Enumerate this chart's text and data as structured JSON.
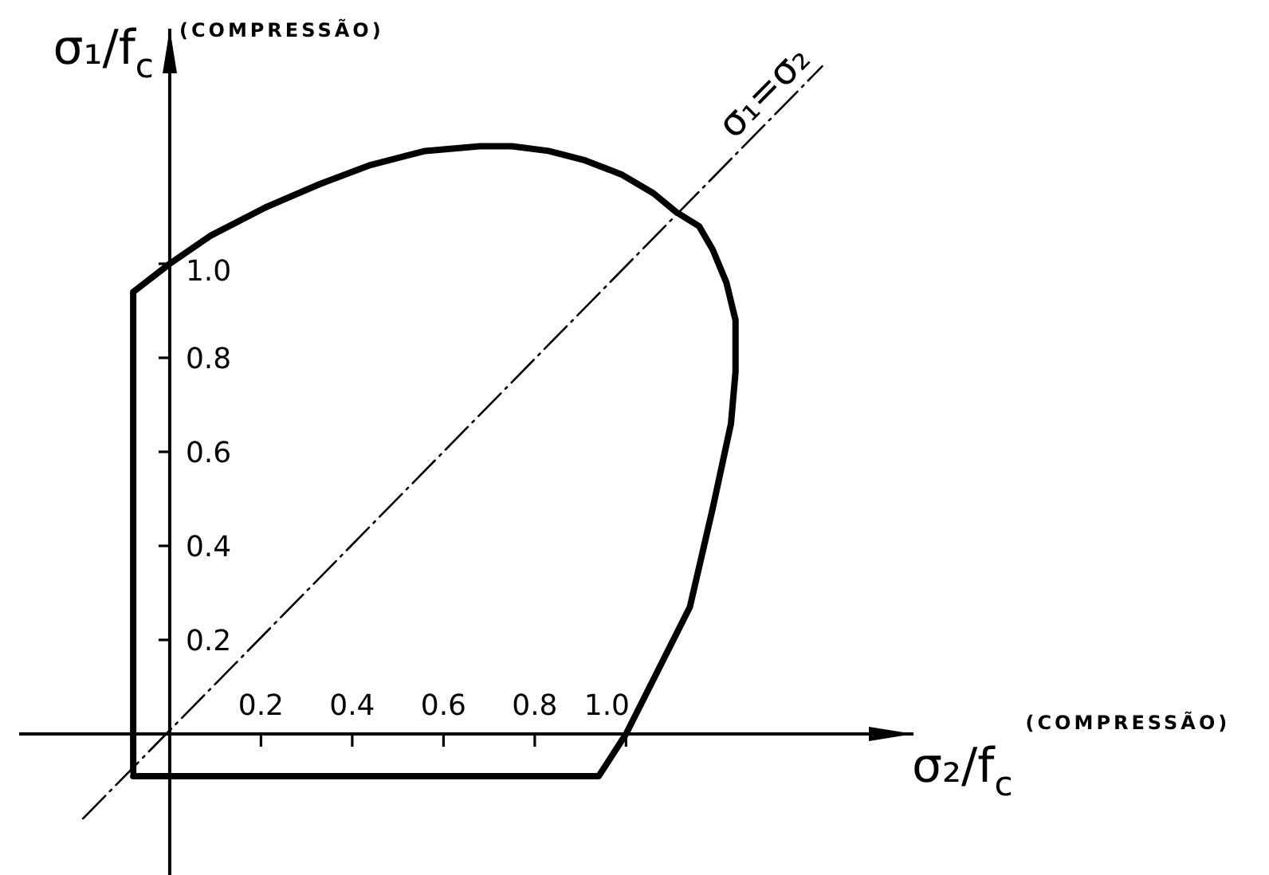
{
  "chart_data": {
    "type": "line",
    "xlabel": "σ₂/f$_{c}$",
    "ylabel": "σ₁/f$_{c}$",
    "annotations": [
      "(COMPRESSÃO)",
      "(COMPRESSÃO)"
    ],
    "xlim": [
      -0.33,
      1.63
    ],
    "ylim": [
      -0.3,
      1.5
    ],
    "xticks": [
      0.2,
      0.4,
      0.6,
      0.8,
      {
        "value": 1,
        "label": "1.0"
      }
    ],
    "yticks": [
      0.2,
      0.4,
      0.6,
      0.8,
      {
        "value": 1,
        "label": "1.0"
      }
    ],
    "marker": "none",
    "series": [
      {
        "name": "σ₁=σ₂",
        "color": "#000000",
        "line_style": "dashed",
        "x": [
          -0.19,
          1.43
        ],
        "values": [
          -0.18,
          1.42
        ]
      },
      {
        "color": "#000000",
        "x": [
          -0.08,
          0.94,
          1.0,
          1.14,
          1.19,
          1.23,
          1.24,
          1.24,
          1.22,
          1.19,
          1.16,
          1.11,
          1.06,
          0.99,
          0.91,
          0.83,
          0.75,
          0.68,
          0.56,
          0.44,
          0.33,
          0.21,
          0.09,
          0,
          -0.08,
          -0.08
        ],
        "values": [
          -0.09,
          -0.09,
          0,
          0.27,
          0.48,
          0.66,
          0.77,
          0.88,
          0.96,
          1.03,
          1.08,
          1.11,
          1.15,
          1.19,
          1.22,
          1.24,
          1.25,
          1.25,
          1.24,
          1.21,
          1.17,
          1.12,
          1.06,
          1,
          0.94,
          -0.08
        ]
      }
    ]
  }
}
